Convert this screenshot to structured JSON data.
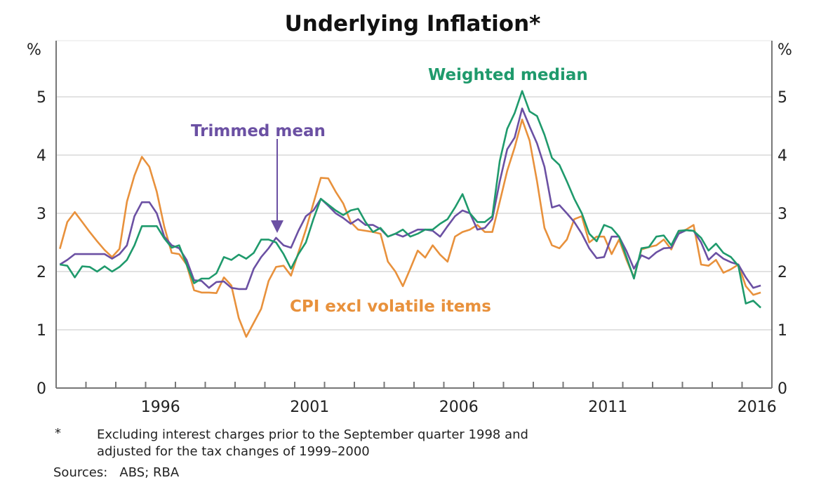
{
  "chart_data": {
    "type": "line",
    "title": "Underlying Inflation*",
    "ylabel_left": "%",
    "ylabel_right": "%",
    "ylim": [
      0,
      5.5
    ],
    "yticks": [
      0,
      1,
      2,
      3,
      4,
      5
    ],
    "xticks": [
      "1996",
      "2001",
      "2006",
      "2011",
      "2016"
    ],
    "grid": true,
    "frequency": "quarterly",
    "x": [
      "1993Q1",
      "1993Q2",
      "1993Q3",
      "1993Q4",
      "1994Q1",
      "1994Q2",
      "1994Q3",
      "1994Q4",
      "1995Q1",
      "1995Q2",
      "1995Q3",
      "1995Q4",
      "1996Q1",
      "1996Q2",
      "1996Q3",
      "1996Q4",
      "1997Q1",
      "1997Q2",
      "1997Q3",
      "1997Q4",
      "1998Q1",
      "1998Q2",
      "1998Q3",
      "1998Q4",
      "1999Q1",
      "1999Q2",
      "1999Q3",
      "1999Q4",
      "2000Q1",
      "2000Q2",
      "2000Q3",
      "2000Q4",
      "2001Q1",
      "2001Q2",
      "2001Q3",
      "2001Q4",
      "2002Q1",
      "2002Q2",
      "2002Q3",
      "2002Q4",
      "2003Q1",
      "2003Q2",
      "2003Q3",
      "2003Q4",
      "2004Q1",
      "2004Q2",
      "2004Q3",
      "2004Q4",
      "2005Q1",
      "2005Q2",
      "2005Q3",
      "2005Q4",
      "2006Q1",
      "2006Q2",
      "2006Q3",
      "2006Q4",
      "2007Q1",
      "2007Q2",
      "2007Q3",
      "2007Q4",
      "2008Q1",
      "2008Q2",
      "2008Q3",
      "2008Q4",
      "2009Q1",
      "2009Q2",
      "2009Q3",
      "2009Q4",
      "2010Q1",
      "2010Q2",
      "2010Q3",
      "2010Q4",
      "2011Q1",
      "2011Q2",
      "2011Q3",
      "2011Q4",
      "2012Q1",
      "2012Q2",
      "2012Q3",
      "2012Q4",
      "2013Q1",
      "2013Q2",
      "2013Q3",
      "2013Q4",
      "2014Q1",
      "2014Q2",
      "2014Q3",
      "2014Q4",
      "2015Q1",
      "2015Q2",
      "2015Q3",
      "2015Q4",
      "2016Q1",
      "2016Q2",
      "2016Q3"
    ],
    "series": [
      {
        "name": "CPI excl volatile items",
        "color": "#e8913c",
        "values": [
          2.39,
          2.85,
          3.02,
          2.85,
          2.68,
          2.52,
          2.37,
          2.25,
          2.39,
          3.2,
          3.65,
          3.97,
          3.8,
          3.37,
          2.77,
          2.32,
          2.3,
          2.12,
          1.68,
          1.64,
          1.64,
          1.63,
          1.9,
          1.76,
          1.2,
          0.88,
          1.12,
          1.36,
          1.84,
          2.08,
          2.1,
          1.93,
          2.33,
          2.72,
          3.17,
          3.61,
          3.6,
          3.37,
          3.17,
          2.85,
          2.72,
          2.7,
          2.68,
          2.65,
          2.17,
          2.0,
          1.75,
          2.05,
          2.36,
          2.24,
          2.45,
          2.29,
          2.17,
          2.6,
          2.68,
          2.72,
          2.8,
          2.68,
          2.68,
          3.2,
          3.73,
          4.13,
          4.61,
          4.25,
          3.55,
          2.75,
          2.45,
          2.4,
          2.55,
          2.9,
          2.95,
          2.5,
          2.6,
          2.6,
          2.3,
          2.55,
          2.2,
          1.9,
          2.38,
          2.42,
          2.45,
          2.55,
          2.38,
          2.68,
          2.72,
          2.8,
          2.12,
          2.1,
          2.2,
          1.98,
          2.04,
          2.12,
          1.75,
          1.6,
          1.64
        ]
      },
      {
        "name": "Trimmed mean",
        "color": "#6b50a3",
        "values": [
          2.12,
          2.2,
          2.3,
          2.3,
          2.3,
          2.3,
          2.3,
          2.22,
          2.3,
          2.45,
          2.95,
          3.19,
          3.19,
          3.0,
          2.6,
          2.45,
          2.4,
          2.2,
          1.85,
          1.84,
          1.72,
          1.82,
          1.83,
          1.72,
          1.7,
          1.7,
          2.05,
          2.25,
          2.4,
          2.58,
          2.45,
          2.41,
          2.7,
          2.95,
          3.05,
          3.25,
          3.13,
          3.0,
          2.92,
          2.82,
          2.9,
          2.8,
          2.8,
          2.73,
          2.6,
          2.65,
          2.6,
          2.66,
          2.72,
          2.72,
          2.7,
          2.6,
          2.78,
          2.95,
          3.05,
          3.0,
          2.72,
          2.75,
          2.9,
          3.55,
          4.1,
          4.3,
          4.8,
          4.49,
          4.2,
          3.8,
          3.1,
          3.14,
          3.0,
          2.85,
          2.65,
          2.4,
          2.23,
          2.25,
          2.6,
          2.6,
          2.35,
          2.05,
          2.28,
          2.22,
          2.33,
          2.4,
          2.41,
          2.65,
          2.71,
          2.7,
          2.5,
          2.2,
          2.32,
          2.22,
          2.16,
          2.12,
          1.9,
          1.72,
          1.76
        ]
      },
      {
        "name": "Weighted median",
        "color": "#1f9a6c",
        "values": [
          2.12,
          2.1,
          1.9,
          2.09,
          2.08,
          2.0,
          2.09,
          2.0,
          2.08,
          2.2,
          2.45,
          2.78,
          2.78,
          2.78,
          2.57,
          2.41,
          2.45,
          2.12,
          1.8,
          1.88,
          1.88,
          1.97,
          2.25,
          2.2,
          2.29,
          2.22,
          2.32,
          2.55,
          2.55,
          2.5,
          2.3,
          2.05,
          2.3,
          2.5,
          2.9,
          3.25,
          3.15,
          3.05,
          2.97,
          3.05,
          3.08,
          2.85,
          2.68,
          2.75,
          2.6,
          2.65,
          2.72,
          2.6,
          2.65,
          2.72,
          2.72,
          2.82,
          2.9,
          3.1,
          3.33,
          3.0,
          2.85,
          2.85,
          2.95,
          3.9,
          4.45,
          4.72,
          5.1,
          4.75,
          4.67,
          4.35,
          3.95,
          3.83,
          3.55,
          3.25,
          3.0,
          2.65,
          2.52,
          2.8,
          2.75,
          2.6,
          2.25,
          1.88,
          2.4,
          2.42,
          2.6,
          2.62,
          2.45,
          2.7,
          2.71,
          2.7,
          2.58,
          2.36,
          2.48,
          2.32,
          2.25,
          2.1,
          1.45,
          1.5,
          1.38
        ]
      }
    ],
    "legend": "inline labels",
    "footnote_marker": "*",
    "footnote": "Excluding interest charges prior to the September quarter 1998 and",
    "footnote_line2": "adjusted for the tax changes of 1999–2000",
    "sources": "Sources:   ABS; RBA"
  }
}
